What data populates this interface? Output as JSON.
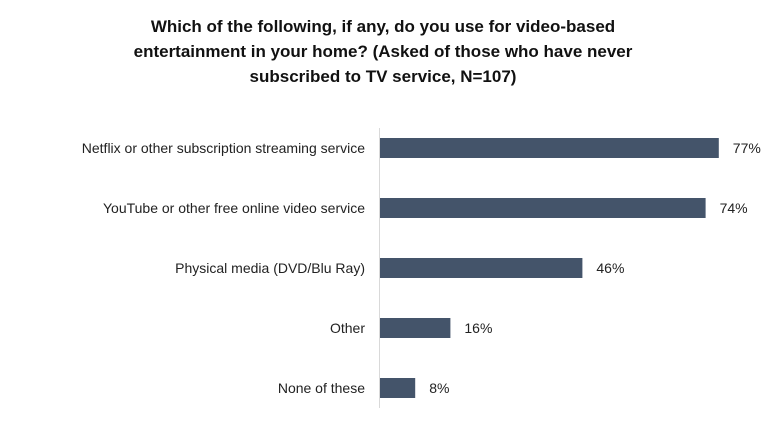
{
  "chart_data": {
    "type": "bar",
    "orientation": "horizontal",
    "title_lines": [
      "Which of the following, if any, do you use for video-based",
      "entertainment in your home? (Asked of those who have never",
      "subscribed to TV service, N=107)"
    ],
    "categories": [
      "Netflix or other subscription streaming service",
      "YouTube or other free online video service",
      "Physical media (DVD/Blu Ray)",
      "Other",
      "None of these"
    ],
    "values": [
      77,
      74,
      46,
      16,
      8
    ],
    "value_labels": [
      "77%",
      "74%",
      "46%",
      "16%",
      "8%"
    ],
    "unit": "%",
    "xlim": [
      0,
      100
    ],
    "grid": false,
    "legend": "none",
    "bar_color": "#44546a"
  }
}
